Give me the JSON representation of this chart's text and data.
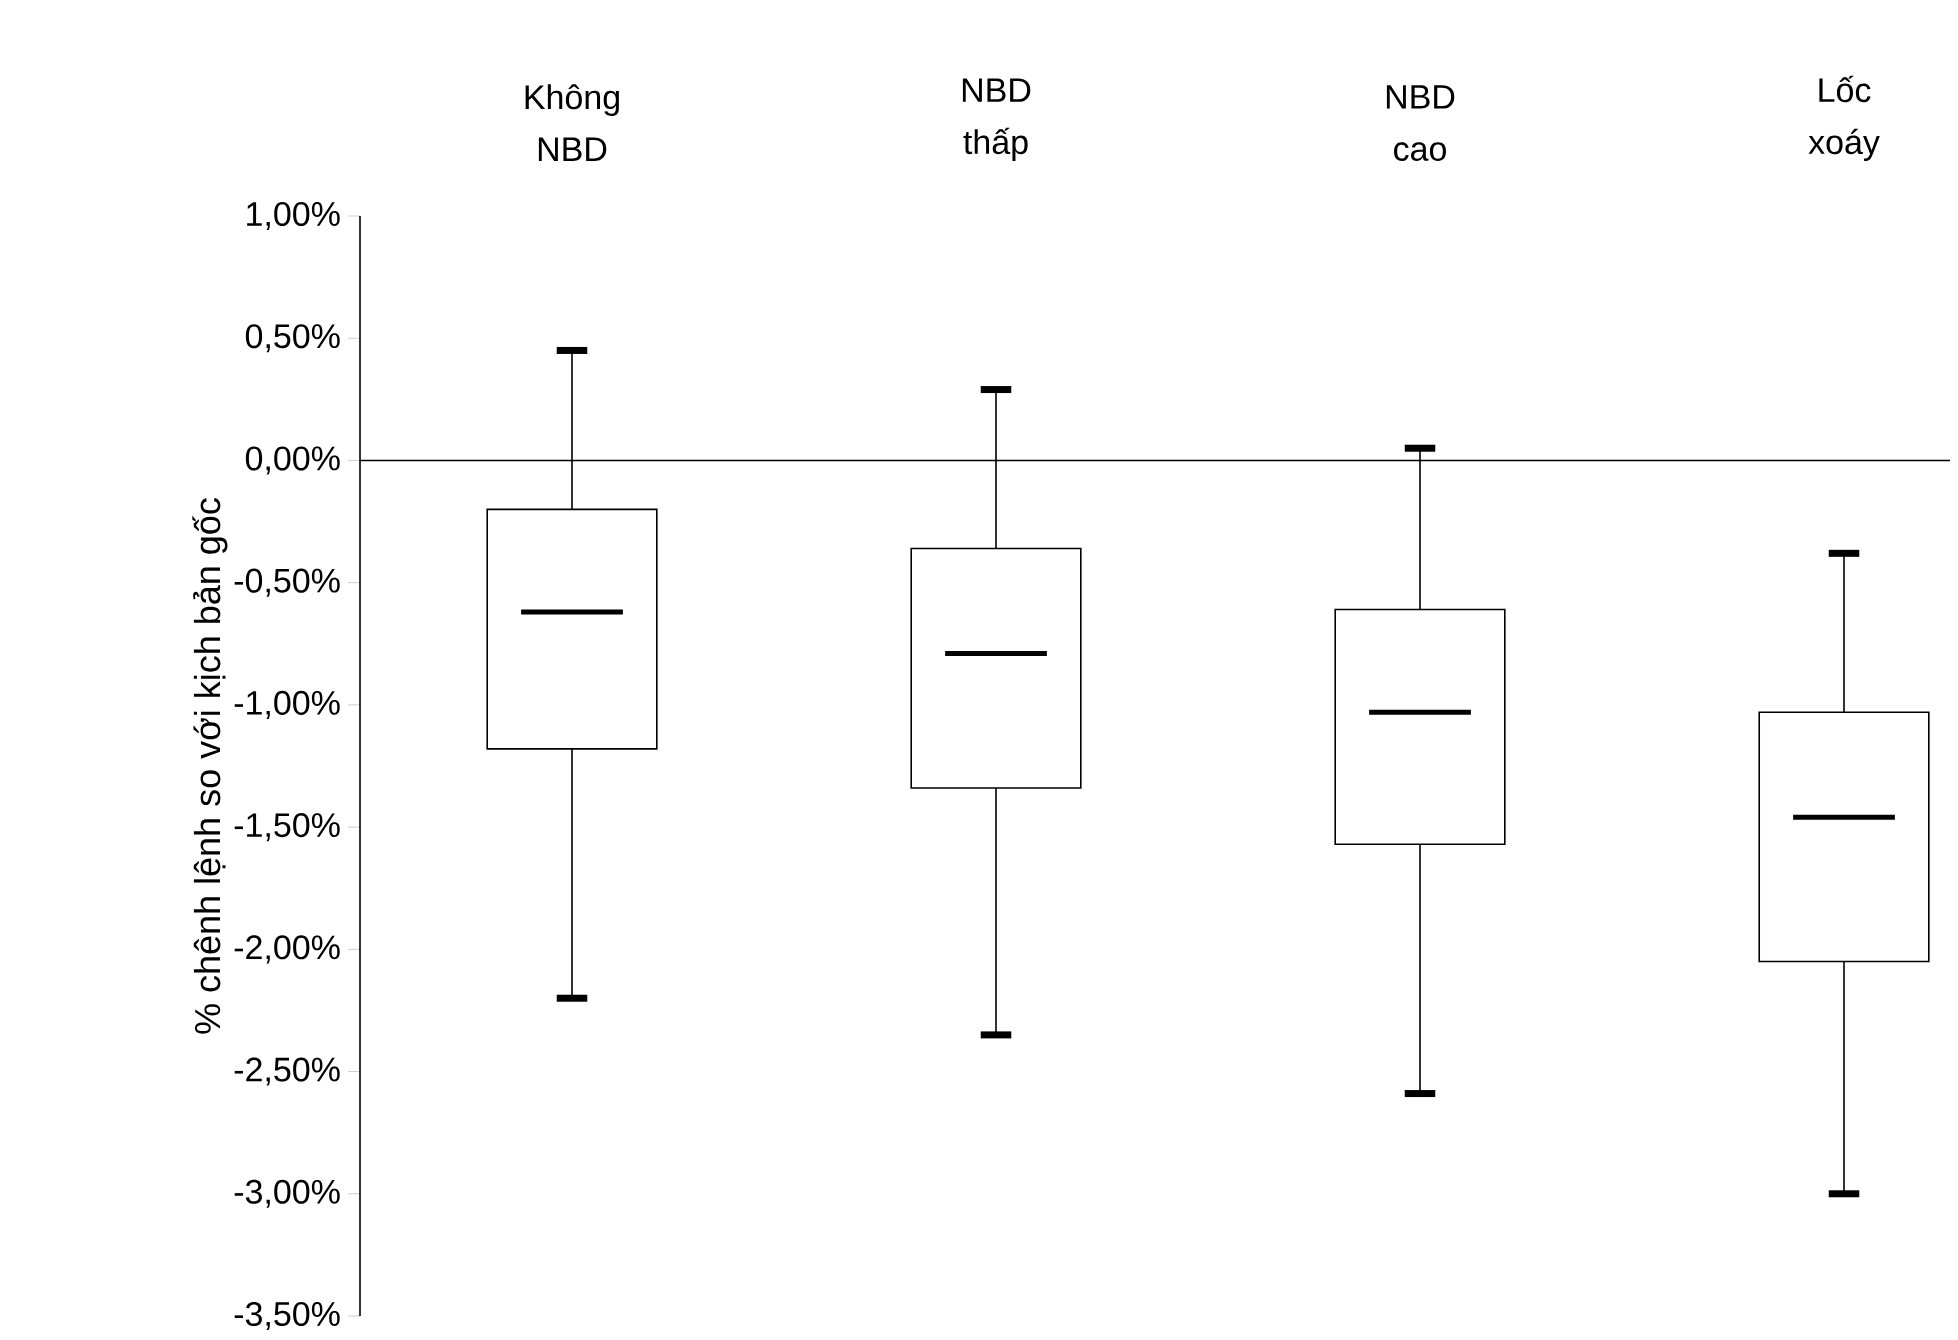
{
  "chart_data": {
    "type": "box",
    "categories": [
      "Không NBD",
      "NBD thấp",
      "NBD cao",
      "Lốc xoáy"
    ],
    "boxes": [
      {
        "low": -2.2,
        "q1": -1.18,
        "median": -0.62,
        "q3": -0.2,
        "high": 0.45
      },
      {
        "low": -2.35,
        "q1": -1.34,
        "median": -0.79,
        "q3": -0.36,
        "high": 0.29
      },
      {
        "low": -2.59,
        "q1": -1.57,
        "median": -1.03,
        "q3": -0.61,
        "high": 0.05
      },
      {
        "low": -3.0,
        "q1": -2.05,
        "median": -1.46,
        "q3": -1.03,
        "high": -0.38
      }
    ],
    "ylabel": "% chênh lệnh so với kịch bản gốc",
    "ylim": [
      -3.5,
      1
    ],
    "yticks": [
      {
        "value": 1,
        "label": "1,00%"
      },
      {
        "value": 0.5,
        "label": "0,50%"
      },
      {
        "value": 0,
        "label": "0,00%"
      },
      {
        "value": -0.5,
        "label": "-0,50%"
      },
      {
        "value": -1,
        "label": "-1,00%"
      },
      {
        "value": -1.5,
        "label": "-1,50%"
      },
      {
        "value": -2,
        "label": "-2,00%"
      },
      {
        "value": -2.5,
        "label": "-2,50%"
      },
      {
        "value": -3,
        "label": "-3,00%"
      },
      {
        "value": -3.5,
        "label": "-3,50%"
      }
    ],
    "ref_lines": [
      {
        "axis": "y",
        "value": 0,
        "color": "#000000"
      }
    ],
    "grid": false,
    "color": "#000000"
  }
}
